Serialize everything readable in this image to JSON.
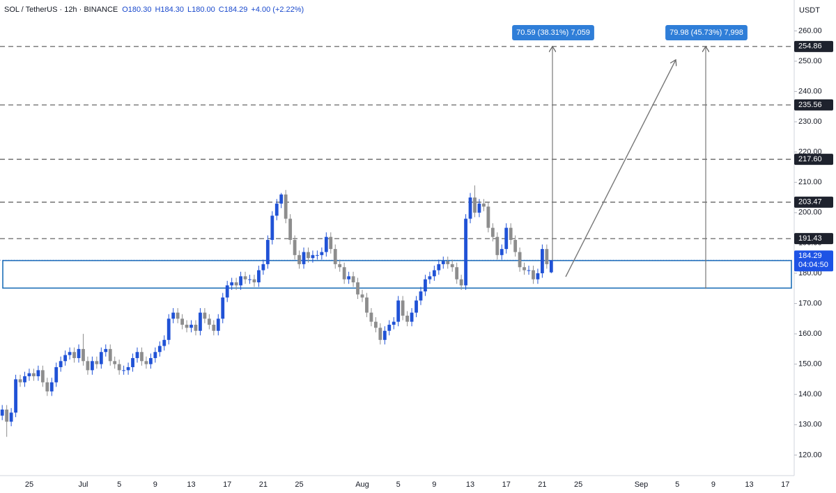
{
  "chart_data": {
    "type": "candlestick",
    "title": "SOL / TetherUS · 12h · BINANCE",
    "ohlc_legend": [
      "O180.30",
      "H184.30",
      "L180.00",
      "C184.29",
      "+4.00 (+2.22%)"
    ],
    "y_axis_label": "USDT",
    "up_color": "#2052d6",
    "down_color": "#8d8d8d",
    "categories": [
      null,
      null,
      null,
      null,
      null,
      null,
      "25",
      null,
      null,
      null,
      null,
      null,
      null,
      null,
      null,
      null,
      null,
      null,
      "Jul",
      null,
      null,
      null,
      null,
      null,
      null,
      null,
      "5",
      null,
      null,
      null,
      null,
      null,
      null,
      null,
      "9",
      null,
      null,
      null,
      null,
      null,
      null,
      null,
      "13",
      null,
      null,
      null,
      null,
      null,
      null,
      null,
      "17",
      null,
      null,
      null,
      null,
      null,
      null,
      null,
      "21",
      null,
      null,
      null,
      null,
      null,
      null,
      null,
      "25",
      null,
      null,
      null,
      null,
      null,
      null,
      null,
      null,
      null,
      null,
      null,
      null,
      null,
      "Aug",
      null,
      null,
      null,
      null,
      null,
      null,
      null,
      "5",
      null,
      null,
      null,
      null,
      null,
      null,
      null,
      "9",
      null,
      null,
      null,
      null,
      null,
      null,
      null,
      "13",
      null,
      null,
      null,
      null,
      null,
      null,
      null,
      "17",
      null,
      null,
      null,
      null,
      null,
      null,
      null,
      "21",
      null,
      null,
      null,
      null,
      null,
      null,
      null,
      "25",
      null,
      null,
      null,
      null,
      null,
      null,
      null,
      null,
      null,
      null,
      null,
      null,
      null,
      "Sep",
      null,
      null,
      null,
      null,
      null,
      null,
      null,
      "5",
      null,
      null,
      null,
      null,
      null,
      null,
      null,
      "9",
      null,
      null,
      null,
      null,
      null,
      null,
      null,
      "13",
      null,
      null,
      null,
      null,
      null,
      null,
      null,
      "17",
      null,
      null
    ],
    "open": [
      133,
      135,
      131,
      134,
      145,
      144,
      146,
      147,
      146,
      148,
      144,
      141,
      144,
      149,
      151,
      153,
      154,
      152,
      155,
      151,
      148,
      151,
      150,
      154,
      155,
      151,
      150,
      148,
      148,
      149,
      152,
      154,
      151,
      150,
      152,
      154,
      156,
      158,
      165,
      167,
      165,
      163,
      162,
      163,
      161,
      167,
      165,
      163,
      161,
      165,
      172,
      176,
      177,
      176,
      179,
      178,
      178,
      177,
      181,
      183,
      191,
      199,
      203,
      206,
      198,
      191,
      186,
      183,
      187,
      185,
      186,
      186,
      187,
      192,
      188,
      183,
      182,
      178,
      179,
      177,
      173,
      172,
      167,
      164,
      162,
      158,
      161,
      163,
      164,
      171,
      166,
      164,
      167,
      171,
      174,
      178,
      179,
      181,
      183,
      184,
      183,
      182,
      178,
      176,
      198,
      205,
      200,
      203,
      202,
      195,
      192,
      186,
      188,
      195,
      191,
      187,
      182,
      181,
      181,
      178,
      180,
      188,
      180.3,
      null,
      null,
      null,
      null,
      null,
      null,
      null,
      null,
      null,
      null,
      null,
      null,
      null,
      null,
      null,
      null,
      null,
      null,
      null,
      null,
      null,
      null,
      null,
      null,
      null,
      null,
      null,
      null,
      null,
      null,
      null,
      null,
      null,
      null,
      null,
      null,
      null,
      null,
      null,
      null,
      null,
      null,
      null,
      null,
      null,
      null,
      null,
      null,
      null,
      null,
      null,
      null,
      null,
      null
    ],
    "high": [
      136.5,
      136.5,
      135.5,
      146.5,
      146.5,
      147.5,
      148.5,
      148.5,
      149.5,
      149.5,
      145.5,
      145.5,
      150.5,
      152.5,
      154.5,
      155.5,
      155.5,
      156.5,
      160,
      152.5,
      152.5,
      152.5,
      155.5,
      156.5,
      156.5,
      152.5,
      151.5,
      149.5,
      150.5,
      153.5,
      155.5,
      155.5,
      152.5,
      153.5,
      155.5,
      157.5,
      159.5,
      166.5,
      168.5,
      168.5,
      166.5,
      164.5,
      164.5,
      164.5,
      168.5,
      168.5,
      166.5,
      164.5,
      166.5,
      173.5,
      177.5,
      178.5,
      178.5,
      180.5,
      180.5,
      179.5,
      179.5,
      182.5,
      184.5,
      192.5,
      200.5,
      204.5,
      206.5,
      207.5,
      199.5,
      192.5,
      187.5,
      188.5,
      188.5,
      187.5,
      187.5,
      188.5,
      193.5,
      193.5,
      189.5,
      184.5,
      183.5,
      180.5,
      180.5,
      178.5,
      174.5,
      173.5,
      168.5,
      165.5,
      163.5,
      162.5,
      164.5,
      165.5,
      172.5,
      172.5,
      167.5,
      168.5,
      172.5,
      175.5,
      179.5,
      180.5,
      182.5,
      184.5,
      185.5,
      185.5,
      184.5,
      183.5,
      179.5,
      199.5,
      206.5,
      209,
      204.5,
      204.5,
      203.5,
      196.5,
      193.5,
      189.5,
      196.5,
      196.5,
      192.5,
      188.5,
      183.5,
      182.5,
      182.5,
      181.5,
      189.5,
      189.5,
      184.3,
      null,
      null,
      null,
      null,
      null,
      null,
      null,
      null,
      null,
      null,
      null,
      null,
      null,
      null,
      null,
      null,
      null,
      null,
      null,
      null,
      null,
      null,
      null,
      null,
      null,
      null,
      null,
      null,
      null,
      null,
      null,
      null,
      null,
      null,
      null,
      null,
      null,
      null,
      null,
      null,
      null,
      null,
      null,
      null,
      null,
      null,
      null,
      null,
      null,
      null,
      null,
      null,
      null,
      null
    ],
    "low": [
      131.5,
      126,
      129.5,
      132.5,
      142.5,
      142.5,
      144.5,
      144.5,
      144.5,
      142.5,
      139.5,
      139.5,
      142.5,
      147.5,
      149.5,
      151.5,
      150.5,
      150.5,
      149.5,
      146.5,
      146.5,
      148.5,
      148.5,
      152.5,
      149.5,
      148.5,
      146.5,
      146.5,
      146.5,
      147.5,
      150.5,
      149.5,
      148.5,
      148.5,
      150.5,
      152.5,
      154.5,
      156.5,
      163.5,
      163.5,
      161.5,
      160.5,
      160.5,
      159.5,
      159.5,
      163.5,
      161.5,
      159.5,
      159.5,
      163.5,
      170.5,
      174.5,
      174.5,
      174.5,
      176.5,
      176.5,
      175.5,
      175.5,
      179.5,
      181.5,
      189.5,
      197.5,
      201.5,
      196.5,
      189.5,
      184.5,
      181.5,
      181.5,
      183.5,
      183.5,
      184.5,
      184.5,
      185.5,
      186.5,
      181.5,
      180.5,
      176.5,
      176.5,
      175.5,
      171.5,
      170.5,
      165.5,
      162.5,
      160.5,
      156.5,
      156.5,
      159.5,
      161.5,
      162.5,
      164.5,
      162.5,
      162.5,
      165.5,
      169.5,
      172.5,
      176.5,
      177.5,
      179.5,
      181.5,
      181.5,
      180.5,
      176.5,
      174.5,
      174.5,
      196.5,
      198.5,
      198.5,
      200.5,
      193.5,
      190.5,
      184.5,
      184.5,
      186.5,
      189.5,
      185.5,
      180.5,
      179.5,
      179.5,
      176.5,
      176.5,
      178.5,
      181.5,
      180,
      null,
      null,
      null,
      null,
      null,
      null,
      null,
      null,
      null,
      null,
      null,
      null,
      null,
      null,
      null,
      null,
      null,
      null,
      null,
      null,
      null,
      null,
      null,
      null,
      null,
      null,
      null,
      null,
      null,
      null,
      null,
      null,
      null,
      null,
      null,
      null,
      null,
      null,
      null,
      null,
      null,
      null,
      null,
      null,
      null,
      null,
      null,
      null,
      null,
      null,
      null,
      null,
      null,
      null
    ],
    "close": [
      135,
      131,
      134,
      145,
      144,
      146,
      147,
      146,
      148,
      144,
      141,
      144,
      149,
      151,
      153,
      154,
      152,
      155,
      151,
      148,
      151,
      150,
      154,
      155,
      151,
      150,
      148,
      148,
      149,
      152,
      154,
      151,
      150,
      152,
      154,
      156,
      158,
      165,
      167,
      165,
      163,
      162,
      163,
      161,
      167,
      165,
      163,
      161,
      165,
      172,
      176,
      177,
      176,
      179,
      178,
      178,
      177,
      181,
      183,
      191,
      199,
      203,
      206,
      198,
      191,
      186,
      183,
      187,
      185,
      186,
      186,
      187,
      192,
      188,
      183,
      182,
      178,
      179,
      177,
      173,
      172,
      167,
      164,
      162,
      158,
      161,
      163,
      164,
      171,
      166,
      164,
      167,
      171,
      174,
      178,
      179,
      181,
      183,
      184,
      183,
      182,
      178,
      176,
      198,
      205,
      200,
      203,
      202,
      195,
      192,
      186,
      188,
      195,
      191,
      187,
      182,
      181,
      181,
      178,
      180,
      188,
      183,
      184.29,
      null,
      null,
      null,
      null,
      null,
      null,
      null,
      null,
      null,
      null,
      null,
      null,
      null,
      null,
      null,
      null,
      null,
      null,
      null,
      null,
      null,
      null,
      null,
      null,
      null,
      null,
      null,
      null,
      null,
      null,
      null,
      null,
      null,
      null,
      null,
      null,
      null,
      null,
      null,
      null,
      null,
      null,
      null,
      null,
      null,
      null,
      null,
      null,
      null,
      null,
      null,
      null,
      null,
      null
    ],
    "ylim": [
      113.2,
      270.2
    ],
    "yticks": [
      {
        "value": 120,
        "label": "120.00"
      },
      {
        "value": 130,
        "label": "130.00"
      },
      {
        "value": 140,
        "label": "140.00"
      },
      {
        "value": 150,
        "label": "150.00"
      },
      {
        "value": 160,
        "label": "160.00"
      },
      {
        "value": 170,
        "label": "170.00"
      },
      {
        "value": 180,
        "label": "180.00"
      },
      {
        "value": 190,
        "label": "190.00"
      },
      {
        "value": 200,
        "label": "200.00"
      },
      {
        "value": 210,
        "label": "210.00"
      },
      {
        "value": 220,
        "label": "220.00"
      },
      {
        "value": 230,
        "label": "230.00"
      },
      {
        "value": 240,
        "label": "240.00"
      },
      {
        "value": 250,
        "label": "250.00"
      },
      {
        "value": 260,
        "label": "260.00"
      }
    ],
    "levels": [
      {
        "value": 254.86,
        "label": "254.86"
      },
      {
        "value": 235.56,
        "label": "235.56"
      },
      {
        "value": 217.6,
        "label": "217.60"
      },
      {
        "value": 203.47,
        "label": "203.47"
      },
      {
        "value": 191.43,
        "label": "191.43"
      }
    ],
    "price": {
      "value": 184.29,
      "label": "184.29",
      "countdown": "04:04:50"
    },
    "zone": {
      "low": 175.1,
      "high": 184.2,
      "color": "#1e6fb8"
    },
    "measures": [
      {
        "from": 184.27,
        "to": 254.86,
        "label": "70.59 (38.31%) 7,059"
      },
      {
        "from": 174.88,
        "to": 254.86,
        "label": "79.98 (45.73%) 7,998"
      }
    ]
  }
}
